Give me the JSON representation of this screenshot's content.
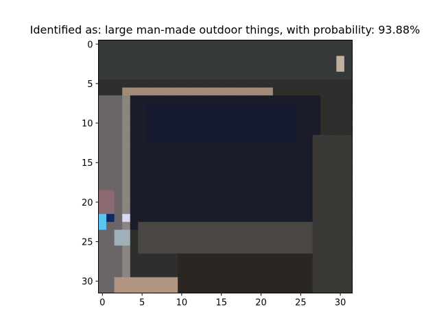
{
  "figure": {
    "title": "Identified as: large man-made outdoor things, with probability: 93.88%"
  },
  "chart_data": {
    "type": "heatmap",
    "title": "Identified as: large man-made outdoor things, with probability: 93.88%",
    "xlabel": "",
    "ylabel": "",
    "xlim": [
      -0.5,
      31.5
    ],
    "ylim": [
      31.5,
      -0.5
    ],
    "x_ticks": [
      0,
      5,
      10,
      15,
      20,
      25,
      30
    ],
    "y_ticks": [
      0,
      5,
      10,
      15,
      20,
      25,
      30
    ],
    "grid": false,
    "image_size": [
      32,
      32
    ],
    "palette": {
      "dark_center": "#1b1c2a",
      "dark_navy": "#161a30",
      "frame_gray": "#55504e",
      "frame_light": "#8a8580",
      "tan": "#b09682",
      "bright": "#e8e6d2",
      "cyan": "#5cc4f0",
      "bg_dark": "#2a2c2a"
    },
    "regions": [
      {
        "rows": [
          0,
          31
        ],
        "cols": [
          0,
          31
        ],
        "color": "#2e2f2c"
      },
      {
        "rows": [
          0,
          4
        ],
        "cols": [
          0,
          31
        ],
        "color": "#36393a"
      },
      {
        "rows": [
          6,
          6
        ],
        "cols": [
          3,
          21
        ],
        "color": "#a08a78"
      },
      {
        "rows": [
          7,
          23
        ],
        "cols": [
          4,
          27
        ],
        "color": "#1b1c2a"
      },
      {
        "rows": [
          8,
          12
        ],
        "cols": [
          6,
          24
        ],
        "color": "#161a30"
      },
      {
        "rows": [
          23,
          26
        ],
        "cols": [
          5,
          27
        ],
        "color": "#4a4644"
      },
      {
        "rows": [
          7,
          31
        ],
        "cols": [
          0,
          2
        ],
        "color": "#6a6668"
      },
      {
        "rows": [
          7,
          31
        ],
        "cols": [
          3,
          3
        ],
        "color": "#8a8580"
      },
      {
        "rows": [
          30,
          31
        ],
        "cols": [
          2,
          9
        ],
        "color": "#b09682"
      },
      {
        "rows": [
          31,
          31
        ],
        "cols": [
          12,
          21
        ],
        "color": "#e8e6d2"
      },
      {
        "rows": [
          22,
          23
        ],
        "cols": [
          0,
          0
        ],
        "color": "#5cc4f0"
      },
      {
        "rows": [
          22,
          22
        ],
        "cols": [
          1,
          1
        ],
        "color": "#0a2a60"
      },
      {
        "rows": [
          22,
          22
        ],
        "cols": [
          3,
          3
        ],
        "color": "#d8d8f0"
      },
      {
        "rows": [
          24,
          25
        ],
        "cols": [
          2,
          3
        ],
        "color": "#a0b0b8"
      },
      {
        "rows": [
          19,
          21
        ],
        "cols": [
          0,
          1
        ],
        "color": "#8a6a70"
      },
      {
        "rows": [
          12,
          31
        ],
        "cols": [
          27,
          31
        ],
        "color": "#3a3936"
      },
      {
        "rows": [
          27,
          31
        ],
        "cols": [
          10,
          26
        ],
        "color": "#2a2624"
      },
      {
        "rows": [
          2,
          3
        ],
        "cols": [
          30,
          30
        ],
        "color": "#c0b0a0"
      }
    ]
  }
}
